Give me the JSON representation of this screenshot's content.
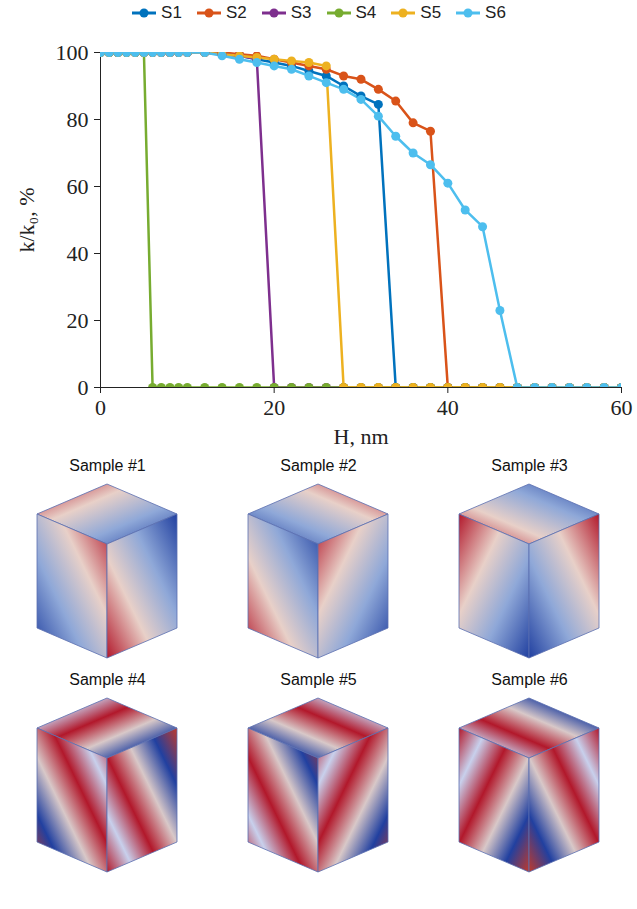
{
  "chart_data": {
    "type": "line",
    "x": [
      0,
      1,
      2,
      3,
      4,
      5,
      6,
      7,
      8,
      9,
      10,
      12,
      14,
      16,
      18,
      20,
      22,
      24,
      26,
      28,
      30,
      32,
      34,
      36,
      38,
      40,
      42,
      44,
      46,
      48,
      50,
      52,
      54,
      56,
      58,
      60
    ],
    "series": [
      {
        "name": "S1",
        "color": "#0072BD",
        "values": [
          100,
          100,
          100,
          100,
          100,
          100,
          100,
          100,
          100,
          100,
          100,
          100,
          99.5,
          99,
          98,
          97,
          96,
          94.5,
          93,
          90,
          87,
          84.5,
          0,
          0,
          0,
          0,
          0,
          0,
          0,
          0,
          0,
          0,
          0,
          0,
          0,
          0
        ]
      },
      {
        "name": "S2",
        "color": "#D95319",
        "values": [
          100,
          100,
          100,
          100,
          100,
          100,
          100,
          100,
          100,
          100,
          100,
          100,
          100,
          99.5,
          99,
          98,
          97,
          96,
          95,
          93,
          92,
          89,
          85.5,
          79,
          76.5,
          0,
          0,
          0,
          0,
          0,
          0,
          0,
          0,
          0,
          0,
          0
        ]
      },
      {
        "name": "S3",
        "color": "#7E2F8E",
        "values": [
          100,
          100,
          100,
          100,
          100,
          100,
          100,
          100,
          100,
          100,
          100,
          100,
          99.5,
          99,
          98,
          0,
          0,
          0,
          0,
          0,
          0,
          0,
          0,
          0,
          0,
          0,
          0,
          0,
          0,
          0,
          0,
          0,
          0,
          0,
          0,
          0
        ]
      },
      {
        "name": "S4",
        "color": "#77AC30",
        "values": [
          100,
          100,
          100,
          100,
          100,
          100,
          0,
          0,
          0,
          0,
          0,
          0,
          0,
          0,
          0,
          0,
          0,
          0,
          0,
          0,
          0,
          0,
          0,
          0,
          0,
          0,
          0,
          0,
          0,
          0,
          0,
          0,
          0,
          0,
          0,
          0
        ]
      },
      {
        "name": "S5",
        "color": "#EDB120",
        "values": [
          100,
          100,
          100,
          100,
          100,
          100,
          100,
          100,
          100,
          100,
          100,
          100,
          99.5,
          99,
          98.5,
          98,
          97.5,
          97,
          96,
          0,
          0,
          0,
          0,
          0,
          0,
          0,
          0,
          0,
          0,
          0,
          0,
          0,
          0,
          0,
          0,
          0
        ]
      },
      {
        "name": "S6",
        "color": "#4DBEEE",
        "values": [
          100,
          100,
          100,
          100,
          100,
          100,
          100,
          100,
          100,
          100,
          100,
          100,
          99,
          98,
          97,
          96,
          95,
          93,
          91,
          89,
          86,
          81,
          75,
          70,
          66.5,
          61,
          53,
          48,
          23,
          0,
          0,
          0,
          0,
          0,
          0,
          0
        ]
      }
    ],
    "xlabel": "H, nm",
    "ylabel": "k/k₀, %",
    "xlim": [
      0,
      60
    ],
    "xticks": [
      0,
      20,
      40,
      60
    ],
    "ylim": [
      0,
      100
    ],
    "yticks": [
      0,
      20,
      40,
      60,
      80,
      100
    ],
    "legend": "top",
    "marker": "circle",
    "grid": false
  },
  "images": {
    "titles": [
      "Sample #1",
      "Sample #2",
      "Sample #3",
      "Sample #4",
      "Sample #5",
      "Sample #6"
    ]
  }
}
